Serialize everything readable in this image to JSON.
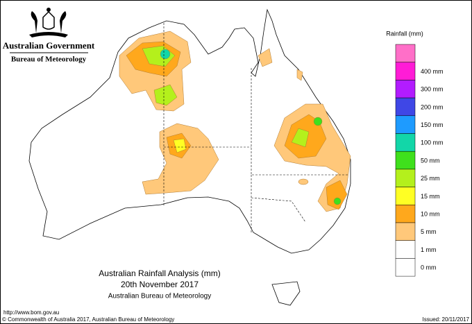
{
  "header": {
    "government": "Australian Government",
    "bureau": "Bureau of Meteorology"
  },
  "legend": {
    "title": "Rainfall (mm)",
    "top_color": "#ff6fc8",
    "items": [
      {
        "label": "400 mm",
        "color": "#ff1cd6"
      },
      {
        "label": "300 mm",
        "color": "#b21cff"
      },
      {
        "label": "200 mm",
        "color": "#3f47e6"
      },
      {
        "label": "150 mm",
        "color": "#1e9bff"
      },
      {
        "label": "100 mm",
        "color": "#12d6a8"
      },
      {
        "label": "50 mm",
        "color": "#3fe01c"
      },
      {
        "label": "25 mm",
        "color": "#b4f01c"
      },
      {
        "label": "15 mm",
        "color": "#ffff24"
      },
      {
        "label": "10 mm",
        "color": "#ffa81c"
      },
      {
        "label": "5 mm",
        "color": "#ffc87a"
      },
      {
        "label": "1 mm",
        "color": "#ffffff"
      },
      {
        "label": "0 mm",
        "color": "#ffffff"
      }
    ]
  },
  "title": {
    "line1": "Australian Rainfall Analysis (mm)",
    "line2": "20th November 2017",
    "line3": "Australian Bureau of Meteorology"
  },
  "footer": {
    "url": "http://www.bom.gov.au",
    "copyright": "© Commonwealth of Australia 2017, Australian Bureau of Meteorology",
    "issued": "Issued: 20/11/2017"
  }
}
